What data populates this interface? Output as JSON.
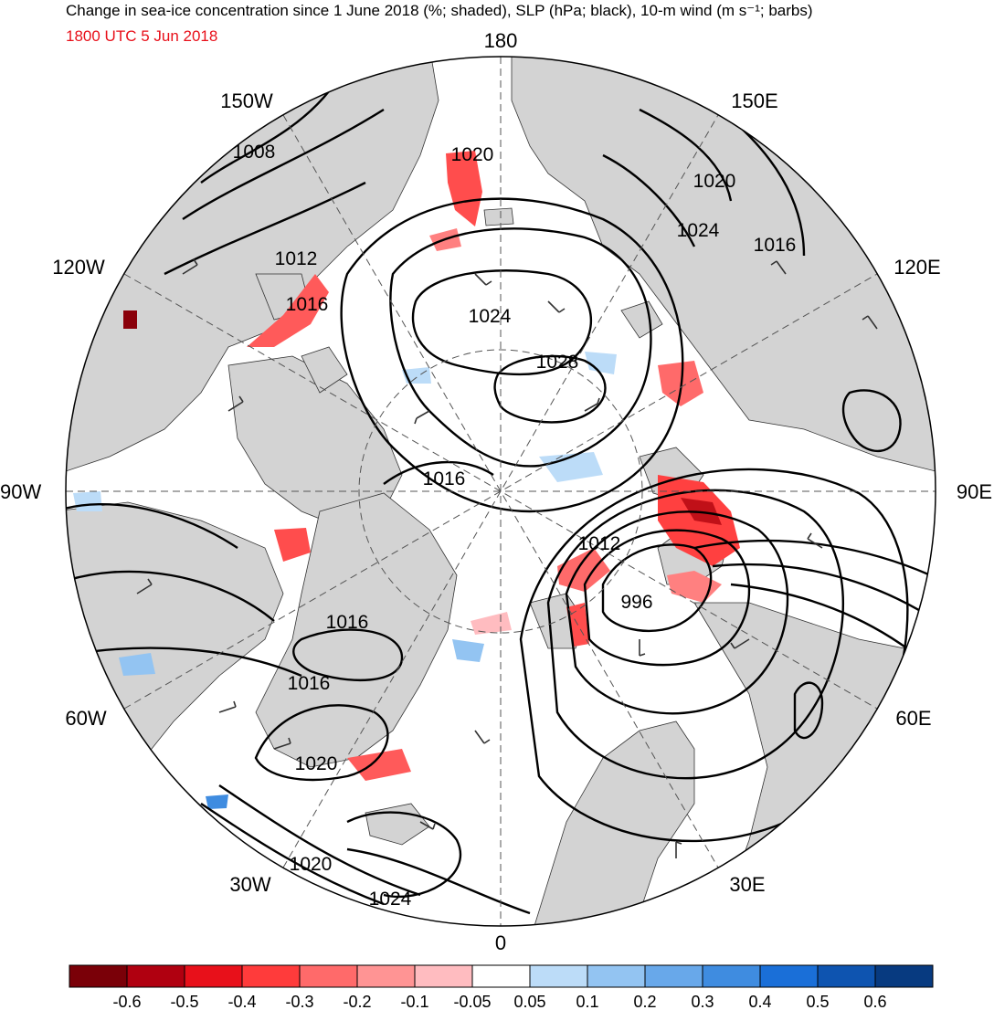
{
  "header": {
    "title": "Change in sea-ice concentration since 1 June 2018 (%; shaded), SLP (hPa; black), 10-m wind (m s⁻¹; barbs)",
    "valid_time": "1800 UTC 5 Jun 2018"
  },
  "longitude_labels": {
    "north": "180",
    "south": "0",
    "west": "90W",
    "east": "90E",
    "nw_150": "150W",
    "ne_150": "150E",
    "nw_120": "120W",
    "ne_120": "120E",
    "sw_60": "60W",
    "se_60": "60E",
    "sw_30": "30W",
    "se_30": "30E"
  },
  "slp_contour_labels": {
    "c1008": "1008",
    "c1012a": "1012",
    "c1016a": "1016",
    "c1020a": "1020",
    "c1024a": "1024",
    "c1028": "1028",
    "c1020b": "1020",
    "c1024b": "1024",
    "c1016b": "1016",
    "c1016c": "1016",
    "c1012b": "1012",
    "c996": "996",
    "c1016d": "1016",
    "c1016e": "1016",
    "c1020c": "1020",
    "c1020d": "1020",
    "c1024c": "1024"
  },
  "colorbar": {
    "colors": [
      "#7a0008",
      "#b00010",
      "#e8101a",
      "#ff3b3b",
      "#ff6a6a",
      "#ff9494",
      "#ffbcc0",
      "#ffffff",
      "#bcdcf8",
      "#93c4f2",
      "#68a8ea",
      "#3f8ce0",
      "#1a6fd8",
      "#0e54b0",
      "#073a80"
    ],
    "labels": [
      "-0.6",
      "-0.5",
      "-0.4",
      "-0.3",
      "-0.2",
      "-0.1",
      "-0.05",
      "0.05",
      "0.1",
      "0.2",
      "0.3",
      "0.4",
      "0.5",
      "0.6"
    ]
  },
  "colors": {
    "land": "#d3d3d3",
    "ocean": "#ffffff",
    "contour": "#000000",
    "decrease": "#ff5a5a",
    "increase": "#93c4f2"
  }
}
